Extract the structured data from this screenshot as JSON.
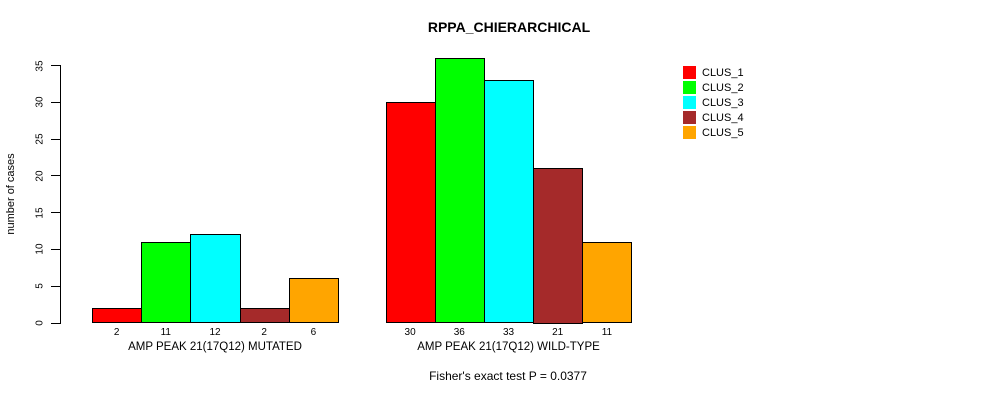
{
  "chart_data": {
    "type": "bar",
    "title": "RPPA_CHIERARCHICAL",
    "ylabel": "number of cases",
    "xlabel": "",
    "ylim": [
      0,
      36.5
    ],
    "yticks": [
      0,
      5,
      10,
      15,
      20,
      25,
      30,
      35
    ],
    "grid": false,
    "legend_position": "right",
    "categories": [
      "AMP PEAK 21(17Q12) MUTATED",
      "AMP PEAK 21(17Q12) WILD-TYPE"
    ],
    "series": [
      {
        "name": "CLUS_1",
        "color": "#FF0000",
        "values": [
          2,
          30
        ]
      },
      {
        "name": "CLUS_2",
        "color": "#00FF00",
        "values": [
          11,
          36
        ]
      },
      {
        "name": "CLUS_3",
        "color": "#00FFFF",
        "values": [
          12,
          33
        ]
      },
      {
        "name": "CLUS_4",
        "color": "#A52A2A",
        "values": [
          2,
          21
        ]
      },
      {
        "name": "CLUS_5",
        "color": "#FFA500",
        "values": [
          6,
          11
        ]
      }
    ],
    "show_value_labels": true,
    "footnote": "Fisher's exact test P = 0.0377"
  }
}
